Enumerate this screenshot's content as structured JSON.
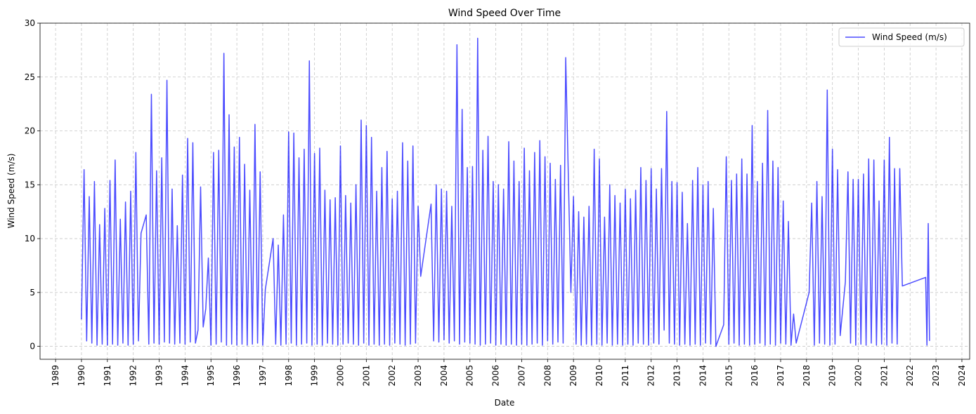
{
  "chart_data": {
    "type": "line",
    "title": "Wind Speed Over Time",
    "xlabel": "Date",
    "ylabel": "Wind Speed (m/s)",
    "x": [
      1990.0,
      1990.1,
      1990.2,
      1990.3,
      1990.4,
      1990.5,
      1990.6,
      1990.7,
      1990.8,
      1990.9,
      1991.0,
      1991.1,
      1991.2,
      1991.3,
      1991.4,
      1991.5,
      1991.6,
      1991.7,
      1991.8,
      1991.9,
      1992.0,
      1992.1,
      1992.2,
      1992.3,
      1992.5,
      1992.6,
      1992.7,
      1992.8,
      1992.9,
      1993.0,
      1993.1,
      1993.2,
      1993.3,
      1993.4,
      1993.5,
      1993.6,
      1993.7,
      1993.8,
      1993.9,
      1994.0,
      1994.1,
      1994.2,
      1994.3,
      1994.4,
      1994.5,
      1994.6,
      1994.7,
      1994.8,
      1994.9,
      1995.0,
      1995.1,
      1995.2,
      1995.3,
      1995.4,
      1995.5,
      1995.6,
      1995.7,
      1995.8,
      1995.9,
      1996.0,
      1996.1,
      1996.2,
      1996.3,
      1996.4,
      1996.5,
      1996.6,
      1996.7,
      1996.8,
      1996.9,
      1997.0,
      1997.1,
      1997.4,
      1997.5,
      1997.6,
      1997.7,
      1997.8,
      1997.9,
      1998.0,
      1998.1,
      1998.2,
      1998.3,
      1998.4,
      1998.5,
      1998.6,
      1998.7,
      1998.8,
      1998.9,
      1999.0,
      1999.1,
      1999.2,
      1999.3,
      1999.4,
      1999.5,
      1999.6,
      1999.7,
      1999.8,
      1999.9,
      2000.0,
      2000.1,
      2000.2,
      2000.3,
      2000.4,
      2000.5,
      2000.6,
      2000.7,
      2000.8,
      2000.9,
      2001.0,
      2001.1,
      2001.2,
      2001.3,
      2001.4,
      2001.5,
      2001.6,
      2001.7,
      2001.8,
      2001.9,
      2002.0,
      2002.1,
      2002.2,
      2002.3,
      2002.4,
      2002.5,
      2002.6,
      2002.7,
      2002.8,
      2002.9,
      2003.0,
      2003.1,
      2003.5,
      2003.6,
      2003.7,
      2003.8,
      2003.9,
      2004.0,
      2004.1,
      2004.2,
      2004.3,
      2004.4,
      2004.5,
      2004.6,
      2004.7,
      2004.8,
      2004.9,
      2005.0,
      2005.1,
      2005.2,
      2005.3,
      2005.4,
      2005.5,
      2005.6,
      2005.7,
      2005.8,
      2005.9,
      2006.0,
      2006.1,
      2006.2,
      2006.3,
      2006.4,
      2006.5,
      2006.6,
      2006.7,
      2006.8,
      2006.9,
      2007.0,
      2007.1,
      2007.2,
      2007.3,
      2007.4,
      2007.5,
      2007.6,
      2007.7,
      2007.8,
      2007.9,
      2008.0,
      2008.1,
      2008.2,
      2008.3,
      2008.4,
      2008.5,
      2008.6,
      2008.7,
      2008.9,
      2009.0,
      2009.1,
      2009.2,
      2009.3,
      2009.4,
      2009.5,
      2009.6,
      2009.7,
      2009.8,
      2009.9,
      2010.0,
      2010.1,
      2010.2,
      2010.3,
      2010.4,
      2010.5,
      2010.6,
      2010.7,
      2010.8,
      2010.9,
      2011.0,
      2011.1,
      2011.2,
      2011.3,
      2011.4,
      2011.5,
      2011.6,
      2011.7,
      2011.8,
      2011.9,
      2012.0,
      2012.1,
      2012.2,
      2012.3,
      2012.4,
      2012.5,
      2012.6,
      2012.7,
      2012.8,
      2012.9,
      2013.0,
      2013.1,
      2013.2,
      2013.3,
      2013.4,
      2013.5,
      2013.6,
      2013.7,
      2013.8,
      2013.9,
      2014.0,
      2014.1,
      2014.2,
      2014.3,
      2014.4,
      2014.5,
      2014.8,
      2014.9,
      2015.0,
      2015.1,
      2015.2,
      2015.3,
      2015.4,
      2015.5,
      2015.6,
      2015.7,
      2015.8,
      2015.9,
      2016.0,
      2016.1,
      2016.2,
      2016.3,
      2016.4,
      2016.5,
      2016.6,
      2016.7,
      2016.8,
      2016.9,
      2017.0,
      2017.1,
      2017.2,
      2017.3,
      2017.4,
      2017.5,
      2017.6,
      2018.1,
      2018.2,
      2018.3,
      2018.4,
      2018.5,
      2018.6,
      2018.7,
      2018.8,
      2018.9,
      2019.0,
      2019.1,
      2019.2,
      2019.3,
      2019.5,
      2019.6,
      2019.7,
      2019.8,
      2019.9,
      2020.0,
      2020.1,
      2020.2,
      2020.3,
      2020.4,
      2020.5,
      2020.6,
      2020.7,
      2020.8,
      2020.9,
      2021.0,
      2021.1,
      2021.2,
      2021.3,
      2021.4,
      2021.5,
      2021.6,
      2021.7,
      2022.6,
      2022.65,
      2022.7,
      2022.75
    ],
    "series": [
      {
        "name": "Wind Speed (m/s)",
        "color": "#0000ff",
        "values": [
          2.5,
          16.4,
          0.5,
          13.9,
          0.3,
          15.3,
          0.1,
          11.3,
          0.2,
          12.8,
          0.1,
          15.4,
          0.2,
          17.3,
          0.1,
          11.8,
          0.3,
          13.4,
          0.1,
          14.4,
          0.2,
          18.0,
          0.5,
          10.5,
          12.2,
          0.2,
          23.4,
          0.3,
          16.3,
          0.2,
          17.5,
          0.4,
          24.7,
          0.3,
          14.6,
          0.2,
          11.2,
          0.3,
          15.9,
          0.2,
          19.3,
          0.4,
          18.9,
          0.3,
          1.5,
          14.8,
          1.8,
          3.5,
          8.2,
          0.1,
          18.0,
          0.2,
          18.2,
          0.4,
          27.2,
          0.1,
          21.5,
          0.2,
          18.5,
          0.1,
          19.4,
          0.2,
          16.9,
          0.1,
          14.5,
          0.2,
          20.6,
          0.3,
          16.2,
          0.1,
          5.3,
          10.0,
          0.2,
          9.4,
          0.1,
          12.2,
          0.2,
          19.9,
          0.3,
          19.8,
          0.1,
          17.5,
          0.2,
          18.3,
          0.3,
          26.5,
          0.1,
          17.9,
          0.2,
          18.4,
          0.1,
          14.5,
          0.3,
          13.6,
          0.2,
          13.8,
          0.1,
          18.6,
          0.2,
          14.0,
          0.3,
          13.3,
          0.2,
          15.0,
          0.1,
          21.0,
          0.3,
          20.5,
          0.1,
          19.4,
          0.2,
          14.4,
          0.1,
          16.6,
          0.2,
          18.1,
          0.1,
          13.7,
          0.3,
          14.4,
          0.2,
          18.9,
          0.1,
          17.2,
          0.2,
          18.6,
          0.3,
          13.0,
          6.5,
          13.2,
          0.5,
          15.0,
          0.4,
          14.6,
          0.6,
          14.4,
          0.3,
          13.0,
          0.5,
          28.0,
          0.2,
          22.0,
          0.4,
          16.6,
          0.3,
          16.7,
          0.2,
          28.6,
          0.1,
          18.2,
          0.2,
          19.5,
          0.3,
          15.3,
          0.1,
          15.0,
          0.2,
          14.6,
          0.1,
          19.0,
          0.2,
          17.2,
          0.1,
          15.3,
          0.2,
          18.4,
          0.1,
          16.3,
          0.2,
          18.0,
          0.3,
          19.1,
          0.1,
          17.6,
          0.5,
          17.0,
          0.2,
          15.5,
          0.4,
          16.8,
          0.3,
          26.8,
          5.0,
          13.9,
          0.2,
          12.5,
          0.1,
          12.0,
          0.2,
          13.0,
          0.1,
          18.3,
          0.2,
          17.4,
          0.1,
          12.0,
          0.3,
          15.0,
          0.1,
          14.0,
          0.2,
          13.3,
          0.1,
          14.6,
          0.2,
          13.7,
          0.1,
          14.5,
          0.3,
          16.6,
          0.2,
          15.4,
          0.1,
          16.5,
          0.3,
          14.6,
          0.2,
          16.5,
          1.5,
          21.8,
          0.3,
          15.3,
          0.2,
          15.2,
          0.1,
          14.3,
          0.2,
          11.4,
          0.1,
          15.4,
          0.2,
          16.6,
          0.1,
          15.0,
          0.3,
          15.3,
          0.2,
          12.8,
          0.0,
          2.0,
          17.6,
          0.2,
          15.4,
          0.3,
          16.0,
          0.1,
          17.4,
          0.2,
          16.0,
          0.1,
          20.5,
          0.2,
          15.3,
          0.3,
          17.0,
          0.1,
          21.9,
          0.2,
          17.2,
          0.1,
          16.6,
          0.3,
          13.5,
          0.2,
          11.6,
          0.1,
          3.0,
          0.3,
          5.0,
          13.3,
          0.1,
          15.3,
          0.3,
          13.9,
          0.2,
          23.8,
          0.1,
          18.3,
          0.2,
          16.4,
          1.0,
          6.0,
          16.2,
          0.3,
          15.5,
          0.1,
          15.5,
          0.2,
          16.0,
          0.1,
          17.4,
          0.3,
          17.3,
          0.1,
          13.5,
          0.2,
          17.3,
          0.1,
          19.4,
          0.3,
          16.5,
          0.2,
          16.5,
          5.6,
          6.4,
          0.1,
          11.4,
          0.5
        ]
      }
    ],
    "xlim": [
      1988.4,
      2024.3
    ],
    "ylim": [
      -1.2,
      30
    ],
    "xticks": [
      1989,
      1990,
      1991,
      1992,
      1993,
      1994,
      1995,
      1996,
      1997,
      1998,
      1999,
      2000,
      2001,
      2002,
      2003,
      2004,
      2005,
      2006,
      2007,
      2008,
      2009,
      2010,
      2011,
      2012,
      2013,
      2014,
      2015,
      2016,
      2017,
      2018,
      2019,
      2020,
      2021,
      2022,
      2023,
      2024
    ],
    "yticks": [
      0,
      5,
      10,
      15,
      20,
      25,
      30
    ],
    "grid": true,
    "legend": "upper right",
    "alpha": 0.7
  }
}
